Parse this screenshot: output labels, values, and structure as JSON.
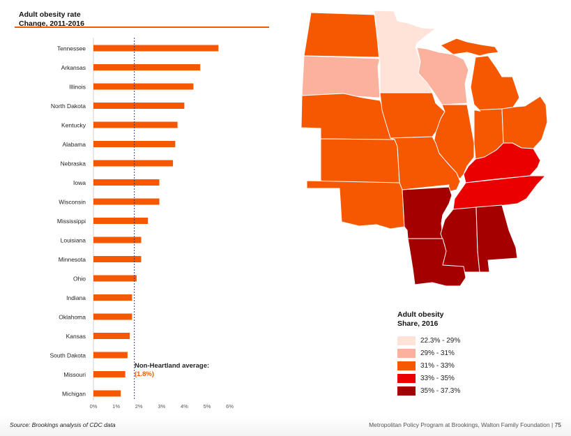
{
  "chart_data": [
    {
      "type": "bar",
      "orientation": "horizontal",
      "title": "Adult obesity rate",
      "subtitle": "Change, 2011-2016",
      "categories": [
        "Tennessee",
        "Arkansas",
        "Illinois",
        "North Dakota",
        "Kentucky",
        "Alabama",
        "Nebraska",
        "Iowa",
        "Wisconsin",
        "Mississippi",
        "Louisiana",
        "Minnesota",
        "Ohio",
        "Indiana",
        "Oklahoma",
        "Kansas",
        "South Dakota",
        "Missouri",
        "Michigan"
      ],
      "values": [
        5.5,
        4.7,
        4.4,
        4.0,
        3.7,
        3.6,
        3.5,
        2.9,
        2.9,
        2.4,
        2.1,
        2.1,
        1.9,
        1.7,
        1.7,
        1.6,
        1.5,
        1.4,
        1.2
      ],
      "unit": "%",
      "xlim": [
        0,
        6
      ],
      "xticks": [
        "0%",
        "1%",
        "2%",
        "3%",
        "4%",
        "5%",
        "6%"
      ],
      "reference_line": {
        "value": 1.8,
        "label": "Non-Heartland average:",
        "value_label": "(1.8%)"
      },
      "bar_color": "#F55800",
      "grid": false
    },
    {
      "type": "choropleth",
      "title": "Adult obesity",
      "subtitle": "Share, 2016",
      "legend": [
        {
          "label": "22.3% - 29%",
          "color": "#FFE3D8"
        },
        {
          "label": "29% - 31%",
          "color": "#FCB19C"
        },
        {
          "label": "31% - 33%",
          "color": "#F55800"
        },
        {
          "label": "33% - 35%",
          "color": "#EB0000"
        },
        {
          "label": "35% - 37.3%",
          "color": "#A50000"
        }
      ],
      "states": [
        {
          "name": "North Dakota",
          "bin": 2
        },
        {
          "name": "South Dakota",
          "bin": 1
        },
        {
          "name": "Minnesota",
          "bin": 0
        },
        {
          "name": "Wisconsin",
          "bin": 1
        },
        {
          "name": "Michigan",
          "bin": 2
        },
        {
          "name": "Nebraska",
          "bin": 2
        },
        {
          "name": "Iowa",
          "bin": 2
        },
        {
          "name": "Illinois",
          "bin": 2
        },
        {
          "name": "Indiana",
          "bin": 2
        },
        {
          "name": "Ohio",
          "bin": 2
        },
        {
          "name": "Kansas",
          "bin": 2
        },
        {
          "name": "Missouri",
          "bin": 2
        },
        {
          "name": "Kentucky",
          "bin": 3
        },
        {
          "name": "Oklahoma",
          "bin": 2
        },
        {
          "name": "Arkansas",
          "bin": 4
        },
        {
          "name": "Tennessee",
          "bin": 3
        },
        {
          "name": "Mississippi",
          "bin": 4
        },
        {
          "name": "Alabama",
          "bin": 4
        },
        {
          "name": "Louisiana",
          "bin": 4
        }
      ]
    }
  ],
  "footer": {
    "source": "Source: Brookings analysis of CDC data",
    "credit": "Metropolitan Policy Program at Brookings, Walton Family Foundation | ",
    "page": "75"
  }
}
